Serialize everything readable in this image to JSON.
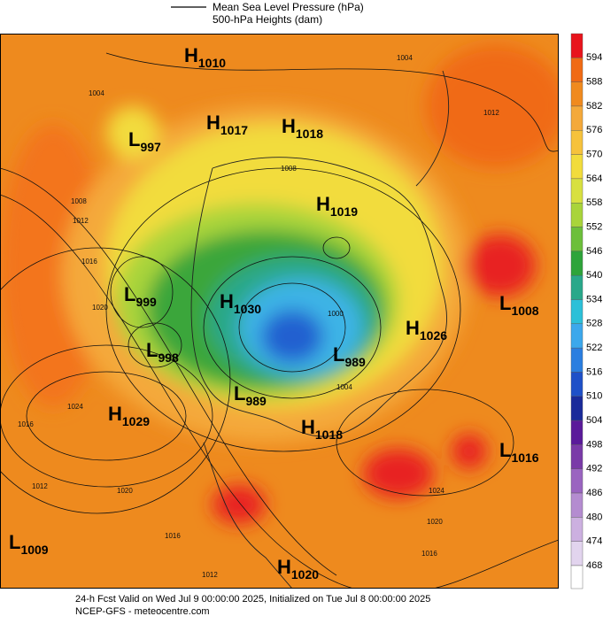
{
  "header": {
    "line1": "Mean Sea Level Pressure (hPa)",
    "line2": "500-hPa Heights (dam)"
  },
  "centers": [
    {
      "letter": "H",
      "value": 1010
    },
    {
      "letter": "L",
      "value": 997
    },
    {
      "letter": "H",
      "value": 1017
    },
    {
      "letter": "H",
      "value": 1018
    },
    {
      "letter": "H",
      "value": 1019
    },
    {
      "letter": "L",
      "value": 999
    },
    {
      "letter": "H",
      "value": 1030
    },
    {
      "letter": "L",
      "value": 1008
    },
    {
      "letter": "H",
      "value": 1026
    },
    {
      "letter": "L",
      "value": 998
    },
    {
      "letter": "L",
      "value": 989
    },
    {
      "letter": "L",
      "value": 989
    },
    {
      "letter": "H",
      "value": 1018
    },
    {
      "letter": "H",
      "value": 1029
    },
    {
      "letter": "L",
      "value": 1016
    },
    {
      "letter": "L",
      "value": 1009
    },
    {
      "letter": "H",
      "value": 1020
    }
  ],
  "contour_labels": [
    "1004",
    "1012",
    "1008",
    "1012",
    "1016",
    "1020",
    "1024",
    "1016",
    "1012",
    "1020",
    "1016",
    "1012",
    "1024",
    "1020",
    "1016",
    "1008",
    "1004",
    "1000",
    "1004"
  ],
  "colorbar": {
    "labels": [
      594,
      588,
      582,
      576,
      570,
      564,
      558,
      552,
      546,
      540,
      534,
      528,
      522,
      516,
      510,
      504,
      498,
      492,
      486,
      480,
      474,
      468
    ],
    "colors": [
      "#e8141c",
      "#f06a14",
      "#f08a1e",
      "#f4a93a",
      "#f6c23c",
      "#f2dc3c",
      "#d8e040",
      "#a9d43a",
      "#6cbf3a",
      "#2ea43a",
      "#29a88a",
      "#2cc0d8",
      "#3ca8ec",
      "#2a7ee0",
      "#1e50c8",
      "#1a2a9a",
      "#5a1a9a",
      "#7a3aa8",
      "#9a64c0",
      "#b48cd0",
      "#ccb0e0",
      "#e2d4ee",
      "#ffffff"
    ]
  },
  "footer": {
    "line1": "24-h Fcst Valid on Wed Jul  9 00:00:00 2025, Initialized on Tue Jul  8 00:00:00 2025",
    "line2": "NCEP-GFS  - meteocentre.com"
  }
}
